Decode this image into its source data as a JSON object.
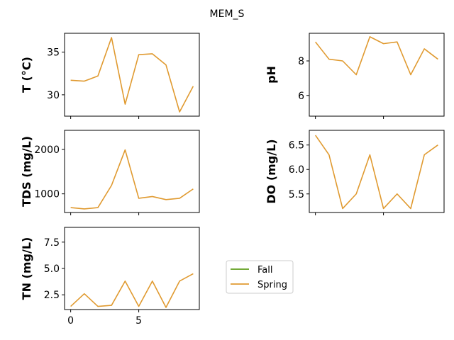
{
  "figure": {
    "title": "MEM_S"
  },
  "legend": {
    "placement": "center-right",
    "entries": [
      {
        "name": "Fall",
        "color": "#5f9e1b"
      },
      {
        "name": "Spring",
        "color": "#e09a30"
      }
    ]
  },
  "chart_data": [
    {
      "type": "line",
      "ylabel": "T  (°C)",
      "ylim": [
        27.5,
        37.2
      ],
      "yticks": [
        30,
        35
      ],
      "xlim": [
        -0.45,
        9.45
      ],
      "xticks": [
        0,
        5
      ],
      "show_xtick_labels": false,
      "series": [
        {
          "name": "Spring",
          "color": "#e09a30",
          "x": [
            0,
            1,
            2,
            3,
            4,
            5,
            6,
            7,
            8,
            9
          ],
          "y": [
            31.7,
            31.6,
            32.2,
            36.7,
            28.9,
            34.7,
            34.8,
            33.5,
            28.0,
            31.0
          ]
        }
      ]
    },
    {
      "type": "line",
      "ylabel": "pH",
      "ylim": [
        4.8,
        9.6
      ],
      "yticks": [
        6,
        8
      ],
      "xlim": [
        -0.45,
        9.45
      ],
      "xticks": [
        0,
        5
      ],
      "show_xtick_labels": false,
      "series": [
        {
          "name": "Spring",
          "color": "#e09a30",
          "x": [
            0,
            1,
            2,
            3,
            4,
            5,
            6,
            7,
            8,
            9
          ],
          "y": [
            9.1,
            8.1,
            8.0,
            7.2,
            9.4,
            9.0,
            9.1,
            7.2,
            8.7,
            8.1
          ]
        }
      ]
    },
    {
      "type": "line",
      "ylabel": "TDS (mg/L)",
      "ylim": [
        580,
        2430
      ],
      "yticks": [
        1000,
        2000
      ],
      "xlim": [
        -0.45,
        9.45
      ],
      "xticks": [
        0,
        5
      ],
      "show_xtick_labels": false,
      "series": [
        {
          "name": "Spring",
          "color": "#e09a30",
          "x": [
            0,
            1,
            2,
            3,
            4,
            5,
            6,
            7,
            8,
            9
          ],
          "y": [
            690,
            660,
            690,
            1190,
            1990,
            900,
            940,
            870,
            900,
            1110
          ]
        }
      ]
    },
    {
      "type": "line",
      "ylabel": "DO (mg/L)",
      "ylim": [
        5.12,
        6.8
      ],
      "yticks": [
        5.5,
        6.0,
        6.5
      ],
      "xlim": [
        -0.45,
        9.45
      ],
      "xticks": [
        0,
        5
      ],
      "show_xtick_labels": false,
      "series": [
        {
          "name": "Spring",
          "color": "#e09a30",
          "x": [
            0,
            1,
            2,
            3,
            4,
            5,
            6,
            7,
            8,
            9
          ],
          "y": [
            6.7,
            6.3,
            5.2,
            5.5,
            6.3,
            5.2,
            5.5,
            5.2,
            6.3,
            6.5
          ]
        }
      ]
    },
    {
      "type": "line",
      "ylabel": "TN (mg/L)",
      "ylim": [
        1.1,
        8.9
      ],
      "yticks": [
        2.5,
        5.0,
        7.5
      ],
      "xlim": [
        -0.45,
        9.45
      ],
      "xticks": [
        0,
        5
      ],
      "show_xtick_labels": true,
      "series": [
        {
          "name": "Spring",
          "color": "#e09a30",
          "x": [
            0,
            1,
            2,
            3,
            4,
            5,
            6,
            7,
            8,
            9
          ],
          "y": [
            1.4,
            2.6,
            1.4,
            1.5,
            3.8,
            1.4,
            3.8,
            1.3,
            3.8,
            4.5
          ]
        }
      ]
    }
  ]
}
